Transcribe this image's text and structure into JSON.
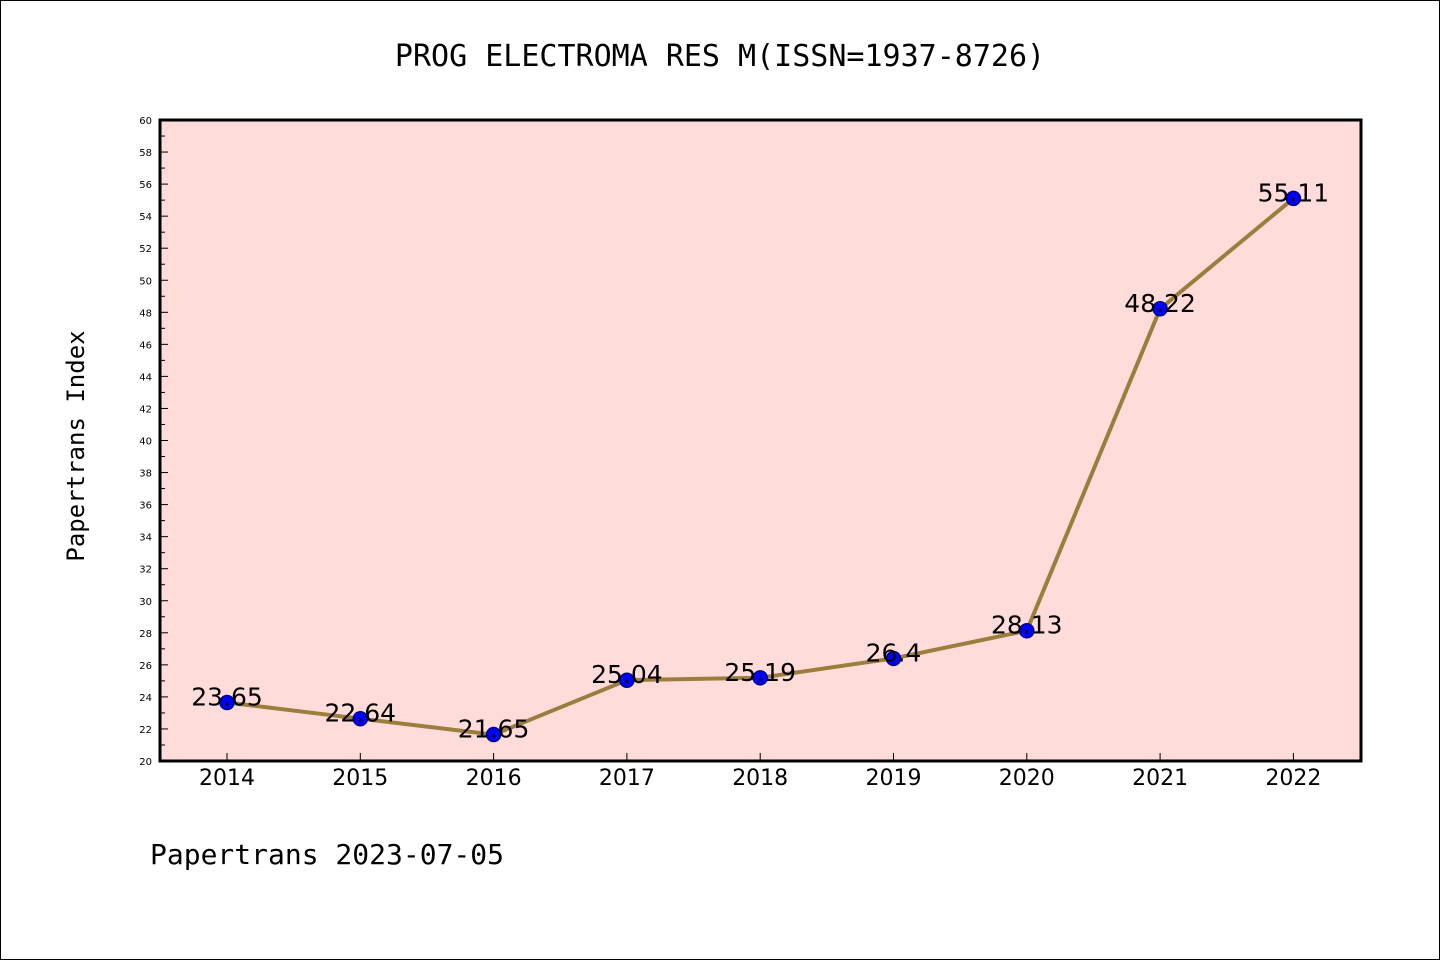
{
  "chart_data": {
    "type": "line",
    "title": "PROG ELECTROMA RES M(ISSN=1937-8726)",
    "ylabel": "Papertrans Index",
    "xlabel": "",
    "footer": "Papertrans 2023-07-05",
    "categories": [
      "2014",
      "2015",
      "2016",
      "2017",
      "2018",
      "2019",
      "2020",
      "2021",
      "2022"
    ],
    "values": [
      23.65,
      22.64,
      21.65,
      25.04,
      25.19,
      26.4,
      28.13,
      48.22,
      55.11
    ],
    "data_labels": [
      "23.65",
      "22.64",
      "21.65",
      "25.04",
      "25.19",
      "26.4",
      "28.13",
      "48.22",
      "55.11"
    ],
    "ylim": [
      20,
      60
    ],
    "yticks": [
      "20",
      "22",
      "24",
      "26",
      "28",
      "30",
      "32",
      "34",
      "36",
      "38",
      "40",
      "42",
      "44",
      "46",
      "48",
      "50",
      "52",
      "54",
      "56",
      "58",
      "60"
    ],
    "grid": false,
    "colors": {
      "plot_background": "#ffdcda",
      "line": "#9b7d3c",
      "marker": "#0000ff",
      "marker_edge": "#00008b"
    }
  }
}
